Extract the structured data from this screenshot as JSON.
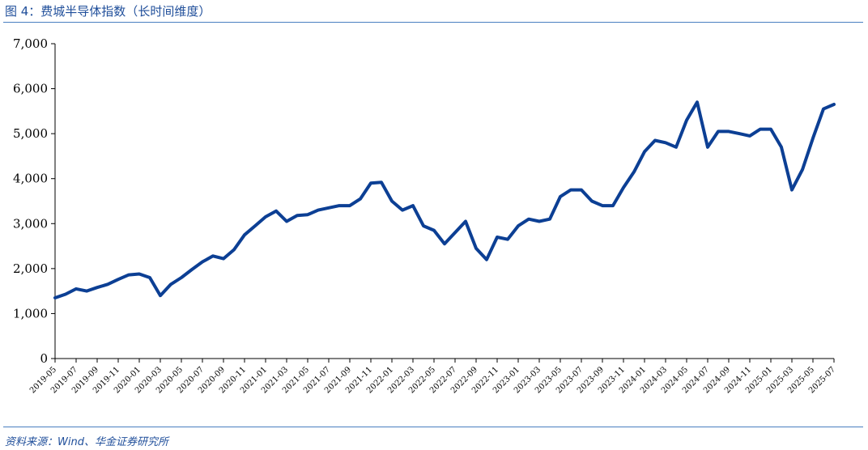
{
  "figure": {
    "title": "图 4：费城半导体指数（长时间维度）",
    "source": "资料来源：Wind、华金证券研究所"
  },
  "colors": {
    "line": "#0c3f94",
    "axis": "#000000",
    "rule": "#4a7fc0",
    "title": "#1f4e9a"
  },
  "chart_data": {
    "type": "line",
    "title": "",
    "xlabel": "",
    "ylabel": "",
    "ylim": [
      0,
      7000
    ],
    "yticks": [
      0,
      1000,
      2000,
      3000,
      4000,
      5000,
      6000,
      7000
    ],
    "ytick_labels": [
      "0",
      "1,000",
      "2,000",
      "3,000",
      "4,000",
      "5,000",
      "6,000",
      "7,000"
    ],
    "xlim": [
      "2019-05",
      "2025-07"
    ],
    "xtick_labels": [
      "2019-05",
      "2019-07",
      "2019-09",
      "2019-11",
      "2020-01",
      "2020-03",
      "2020-05",
      "2020-07",
      "2020-09",
      "2020-11",
      "2021-01",
      "2021-03",
      "2021-05",
      "2021-07",
      "2021-09",
      "2021-11",
      "2022-01",
      "2022-03",
      "2022-05",
      "2022-07",
      "2022-09",
      "2022-11",
      "2023-01",
      "2023-03",
      "2023-05",
      "2023-07",
      "2023-09",
      "2023-11",
      "2024-01",
      "2024-03",
      "2024-05",
      "2024-07",
      "2024-09",
      "2024-11",
      "2025-01",
      "2025-03",
      "2025-05",
      "2025-07"
    ],
    "grid": false,
    "legend": "none",
    "series": [
      {
        "x": [
          "2019-05",
          "2019-06",
          "2019-07",
          "2019-08",
          "2019-09",
          "2019-10",
          "2019-11",
          "2019-12",
          "2020-01",
          "2020-02",
          "2020-03",
          "2020-04",
          "2020-05",
          "2020-06",
          "2020-07",
          "2020-08",
          "2020-09",
          "2020-10",
          "2020-11",
          "2020-12",
          "2021-01",
          "2021-02",
          "2021-03",
          "2021-04",
          "2021-05",
          "2021-06",
          "2021-07",
          "2021-08",
          "2021-09",
          "2021-10",
          "2021-11",
          "2021-12",
          "2022-01",
          "2022-02",
          "2022-03",
          "2022-04",
          "2022-05",
          "2022-06",
          "2022-07",
          "2022-08",
          "2022-09",
          "2022-10",
          "2022-11",
          "2022-12",
          "2023-01",
          "2023-02",
          "2023-03",
          "2023-04",
          "2023-05",
          "2023-06",
          "2023-07",
          "2023-08",
          "2023-09",
          "2023-10",
          "2023-11",
          "2023-12",
          "2024-01",
          "2024-02",
          "2024-03",
          "2024-04",
          "2024-05",
          "2024-06",
          "2024-07",
          "2024-08",
          "2024-09",
          "2024-10",
          "2024-11",
          "2024-12",
          "2025-01",
          "2025-02",
          "2025-03",
          "2025-04",
          "2025-05",
          "2025-06",
          "2025-07"
        ],
        "values": [
          1350,
          1430,
          1550,
          1500,
          1580,
          1650,
          1760,
          1860,
          1880,
          1800,
          1400,
          1650,
          1800,
          1980,
          2150,
          2280,
          2220,
          2420,
          2750,
          2950,
          3150,
          3280,
          3050,
          3180,
          3200,
          3300,
          3350,
          3400,
          3400,
          3550,
          3900,
          3920,
          3500,
          3300,
          3400,
          2950,
          2850,
          2550,
          2800,
          3050,
          2450,
          2200,
          2700,
          2650,
          2950,
          3100,
          3050,
          3100,
          3600,
          3750,
          3750,
          3500,
          3400,
          3400,
          3800,
          4150,
          4600,
          4850,
          4800,
          4700,
          5300,
          5700,
          4700,
          5050,
          5050,
          5000,
          4950,
          5100,
          5100,
          4700,
          3750,
          4200,
          4900,
          5550,
          5650
        ]
      }
    ]
  }
}
